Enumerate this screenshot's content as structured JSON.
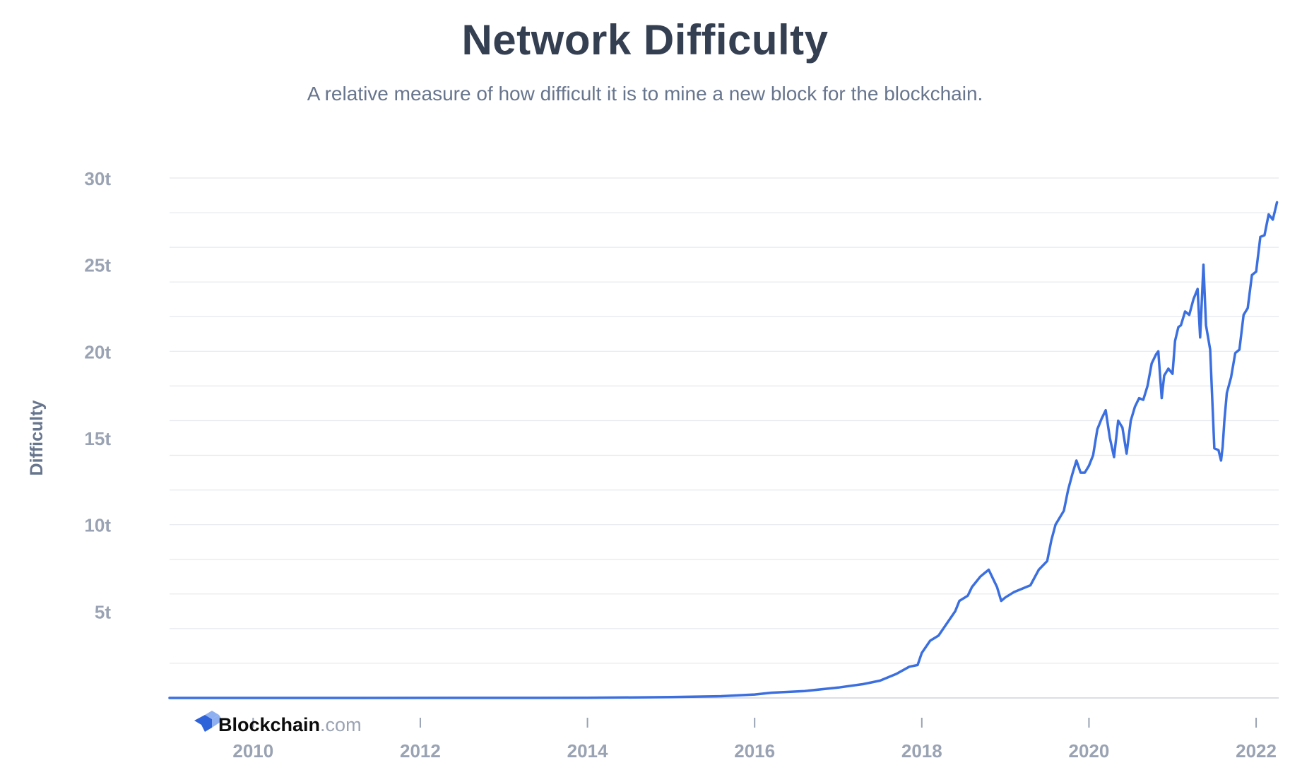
{
  "chart_data": {
    "type": "line",
    "title": "Network Difficulty",
    "subtitle": "A relative measure of how difficult it is to mine a new block for the blockchain.",
    "xlabel": "",
    "ylabel": "Difficulty",
    "xlim": [
      2009.0,
      2022.27
    ],
    "ylim": [
      0,
      30
    ],
    "y_ticks": [
      {
        "value": 5,
        "label": "5t"
      },
      {
        "value": 10,
        "label": "10t"
      },
      {
        "value": 15,
        "label": "15t"
      },
      {
        "value": 20,
        "label": "20t"
      },
      {
        "value": 25,
        "label": "25t"
      },
      {
        "value": 30,
        "label": "30t"
      }
    ],
    "x_ticks": [
      {
        "value": 2010,
        "label": "2010"
      },
      {
        "value": 2012,
        "label": "2012"
      },
      {
        "value": 2014,
        "label": "2014"
      },
      {
        "value": 2016,
        "label": "2016"
      },
      {
        "value": 2018,
        "label": "2018"
      },
      {
        "value": 2020,
        "label": "2020"
      },
      {
        "value": 2022,
        "label": "2022"
      }
    ],
    "grid": true,
    "minor_grid_step": 2,
    "series_color": "#3b6fe0",
    "series": [
      {
        "x": [
          2009.0,
          2013.0,
          2014.0,
          2015.0,
          2015.6,
          2016.0,
          2016.2,
          2016.6,
          2017.0,
          2017.3,
          2017.5,
          2017.7,
          2017.85,
          2017.95,
          2018.0,
          2018.1,
          2018.2,
          2018.3,
          2018.4,
          2018.45,
          2018.55,
          2018.6,
          2018.7,
          2018.75,
          2018.8,
          2018.9,
          2018.95,
          2019.0,
          2019.1,
          2019.2,
          2019.3,
          2019.4,
          2019.5,
          2019.55,
          2019.6,
          2019.7,
          2019.75,
          2019.8,
          2019.85,
          2019.9,
          2019.95,
          2020.0,
          2020.05,
          2020.1,
          2020.15,
          2020.2,
          2020.25,
          2020.3,
          2020.35,
          2020.4,
          2020.45,
          2020.5,
          2020.55,
          2020.6,
          2020.65,
          2020.7,
          2020.75,
          2020.8,
          2020.83,
          2020.87,
          2020.9,
          2020.95,
          2021.0,
          2021.03,
          2021.07,
          2021.1,
          2021.15,
          2021.2,
          2021.25,
          2021.3,
          2021.33,
          2021.37,
          2021.4,
          2021.45,
          2021.5,
          2021.55,
          2021.58,
          2021.6,
          2021.62,
          2021.65,
          2021.7,
          2021.75,
          2021.8,
          2021.85,
          2021.9,
          2021.95,
          2022.0,
          2022.05,
          2022.1,
          2022.15,
          2022.2,
          2022.25
        ],
        "values": [
          0.0,
          0.005,
          0.01,
          0.05,
          0.1,
          0.2,
          0.3,
          0.4,
          0.6,
          0.8,
          1.0,
          1.4,
          1.8,
          1.9,
          2.6,
          3.3,
          3.6,
          4.3,
          5.0,
          5.6,
          5.9,
          6.4,
          7.0,
          7.2,
          7.4,
          6.4,
          5.6,
          5.8,
          6.1,
          6.3,
          6.5,
          7.4,
          7.9,
          9.1,
          10.0,
          10.8,
          12.0,
          12.9,
          13.7,
          13.0,
          13.0,
          13.4,
          14.0,
          15.5,
          16.1,
          16.6,
          15.0,
          13.9,
          16.0,
          15.6,
          14.1,
          16.0,
          16.8,
          17.3,
          17.2,
          18.0,
          19.3,
          19.8,
          20.0,
          17.3,
          18.6,
          19.0,
          18.7,
          20.6,
          21.4,
          21.5,
          22.3,
          22.1,
          23.0,
          23.6,
          20.8,
          25.0,
          21.5,
          20.1,
          14.4,
          14.3,
          13.7,
          14.5,
          16.0,
          17.6,
          18.5,
          19.9,
          20.1,
          22.1,
          22.5,
          24.4,
          24.6,
          26.6,
          26.7,
          27.9,
          27.6,
          28.6
        ]
      }
    ]
  },
  "brand": {
    "name": "Blockchain",
    "suffix": ".com",
    "logo_icon": "blockchain-cube-icon",
    "logo_color_light": "#8fb0f0",
    "logo_color_dark": "#2f63d9"
  }
}
